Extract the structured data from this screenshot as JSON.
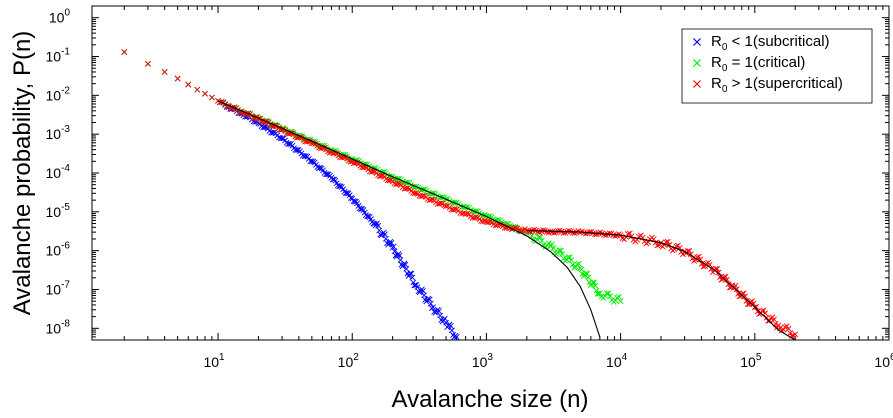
{
  "chart_data": {
    "type": "scatter",
    "title": "",
    "xlabel": "Avalanche size (n)",
    "ylabel": "Avalanche probability, P(n)",
    "xscale": "log",
    "yscale": "log",
    "xlim": [
      1.15,
      1000000
    ],
    "ylim": [
      5e-09,
      2
    ],
    "x_ticks": [
      {
        "value": 10,
        "base": "10",
        "exp": "1"
      },
      {
        "value": 100,
        "base": "10",
        "exp": "2"
      },
      {
        "value": 1000,
        "base": "10",
        "exp": "3"
      },
      {
        "value": 10000,
        "base": "10",
        "exp": "4"
      },
      {
        "value": 100000,
        "base": "10",
        "exp": "5"
      },
      {
        "value": 1000000,
        "base": "10",
        "exp": "6"
      }
    ],
    "y_ticks": [
      {
        "value": 1,
        "base": "10",
        "exp": "0"
      },
      {
        "value": 0.1,
        "base": "10",
        "exp": "-1"
      },
      {
        "value": 0.01,
        "base": "10",
        "exp": "-2"
      },
      {
        "value": 0.001,
        "base": "10",
        "exp": "-3"
      },
      {
        "value": 0.0001,
        "base": "10",
        "exp": "-4"
      },
      {
        "value": 1e-05,
        "base": "10",
        "exp": "-5"
      },
      {
        "value": 1e-06,
        "base": "10",
        "exp": "-6"
      },
      {
        "value": 1e-07,
        "base": "10",
        "exp": "-7"
      },
      {
        "value": 1e-08,
        "base": "10",
        "exp": "-8"
      }
    ],
    "legend_position": "top-right",
    "marker": "x",
    "series": [
      {
        "name": "R0 < 1 (subcritical)",
        "legend": {
          "pre": "R",
          "sub": "0",
          "post": " < 1(subcritical)"
        },
        "color": "#0000ff",
        "x": [
          2,
          3,
          4,
          5,
          6,
          7,
          8,
          9,
          10,
          12,
          15,
          20,
          30,
          50,
          70,
          100,
          150,
          200,
          300,
          400,
          500,
          600
        ],
        "y": [
          0.13,
          0.065,
          0.04,
          0.027,
          0.019,
          0.014,
          0.011,
          0.0088,
          0.0072,
          0.005,
          0.0034,
          0.0019,
          0.00078,
          0.0002,
          7.5e-05,
          2.2e-05,
          4.5e-06,
          1.2e-06,
          1.3e-07,
          3.5e-08,
          1.4e-08,
          6e-09
        ]
      },
      {
        "name": "R0 = 1 (critical)",
        "legend": {
          "pre": "R",
          "sub": "0",
          "post": " = 1(critical)"
        },
        "color": "#00ee00",
        "x": [
          2,
          3,
          4,
          5,
          6,
          7,
          8,
          9,
          10,
          12,
          15,
          20,
          30,
          50,
          70,
          100,
          200,
          300,
          500,
          700,
          1000,
          1500,
          2000,
          3000,
          5000,
          7000,
          10000
        ],
        "y": [
          0.13,
          0.065,
          0.04,
          0.027,
          0.019,
          0.014,
          0.011,
          0.0088,
          0.0072,
          0.0054,
          0.0039,
          0.0026,
          0.0014,
          0.00065,
          0.00039,
          0.00023,
          8e-05,
          4.4e-05,
          2.1e-05,
          1.3e-05,
          7.8e-06,
          4.4e-06,
          2.8e-06,
          1.3e-06,
          3.5e-07,
          8e-08,
          5e-08
        ]
      },
      {
        "name": "R0 > 1 (supercritical)",
        "legend": {
          "pre": "R",
          "sub": "0",
          "post": " > 1(supercritical)"
        },
        "color": "#ff0000",
        "x": [
          2,
          3,
          4,
          5,
          6,
          7,
          8,
          9,
          10,
          12,
          15,
          20,
          30,
          50,
          70,
          100,
          200,
          300,
          500,
          700,
          1000,
          1500,
          2000,
          3000,
          5000,
          10000,
          20000,
          30000,
          50000,
          70000,
          100000,
          150000,
          200000
        ],
        "y": [
          0.13,
          0.065,
          0.04,
          0.027,
          0.019,
          0.014,
          0.011,
          0.0088,
          0.0072,
          0.0053,
          0.0038,
          0.0025,
          0.0013,
          0.00058,
          0.00034,
          0.0002,
          6e-05,
          3e-05,
          1.4e-05,
          8.8e-06,
          5.5e-06,
          3.8e-06,
          3.3e-06,
          3.1e-06,
          3e-06,
          2.5e-06,
          1.6e-06,
          9.5e-07,
          3.2e-07,
          1.1e-07,
          3.5e-08,
          1.2e-08,
          7e-09
        ]
      }
    ],
    "fit_lines": [
      {
        "color": "#000000",
        "x": [
          10,
          20,
          50,
          100,
          200,
          500,
          1000,
          2000,
          3000,
          4000,
          5000,
          6000,
          7000
        ],
        "y": [
          0.0072,
          0.0026,
          0.00066,
          0.00023,
          8e-05,
          2.1e-05,
          7.6e-06,
          2.4e-06,
          9.5e-07,
          3.7e-07,
          1.2e-07,
          3e-08,
          6e-09
        ]
      },
      {
        "color": "#000000",
        "x": [
          2000,
          5000,
          10000,
          20000,
          30000,
          50000,
          70000,
          100000,
          150000,
          200000
        ],
        "y": [
          3.3e-06,
          3e-06,
          2.5e-06,
          1.6e-06,
          9.5e-07,
          3.2e-07,
          1.1e-07,
          3.5e-08,
          9e-09,
          3e-09
        ]
      }
    ]
  }
}
